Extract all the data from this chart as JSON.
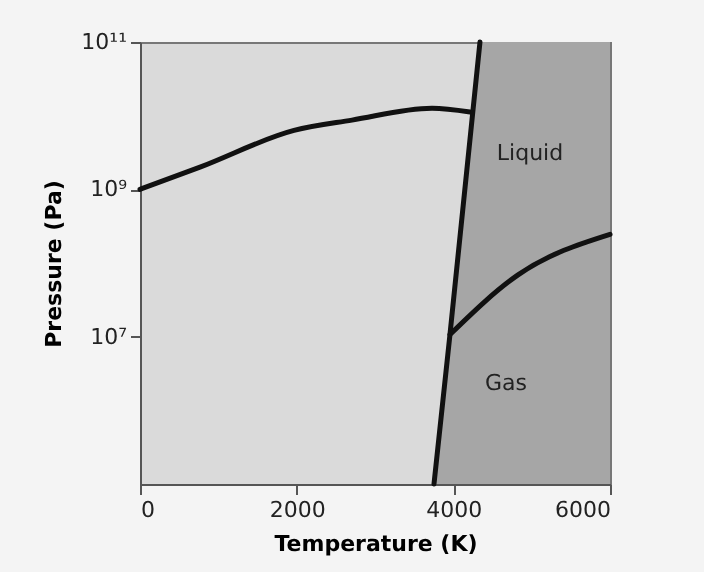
{
  "chart_data": {
    "type": "line",
    "xlabel": "Temperature (K)",
    "ylabel": "Pressure (Pa)",
    "xlim": [
      0,
      6000
    ],
    "xticks": [
      0,
      2000,
      4000,
      6000
    ],
    "ylim": [
      100000,
      100000000000
    ],
    "yticks": [
      {
        "value": 10000000,
        "label": "10⁷"
      },
      {
        "value": 1000000000,
        "label": "10⁹"
      },
      {
        "value": 100000000000,
        "label": "10¹¹"
      }
    ],
    "log": "y",
    "grid": false,
    "marker": "none",
    "line_style": "solid",
    "series": [
      {
        "color": "#111111",
        "x": [
          0,
          766,
          1966,
          2706,
          3728,
          4213
        ],
        "values": [
          1000000000,
          2000000000,
          6300000000,
          8700000000,
          12600000000,
          11200000000
        ]
      },
      {
        "color": "#111111",
        "x": [
          3753,
          3957,
          4340
        ],
        "values": [
          100000,
          10700000,
          100000000000
        ]
      },
      {
        "color": "#111111",
        "x": [
          3957,
          4826,
          6000
        ],
        "values": [
          10700000,
          69000000,
          245000000
        ]
      }
    ],
    "annotations": [
      "Liquid",
      "Gas"
    ]
  }
}
